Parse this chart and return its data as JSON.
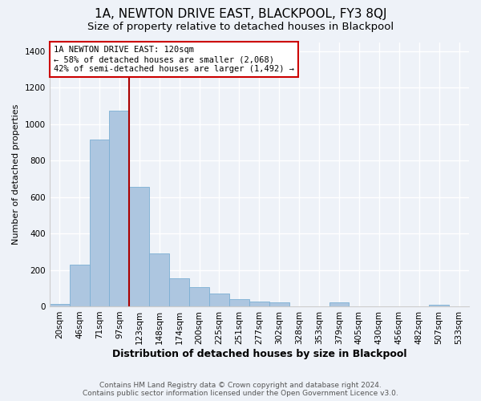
{
  "title": "1A, NEWTON DRIVE EAST, BLACKPOOL, FY3 8QJ",
  "subtitle": "Size of property relative to detached houses in Blackpool",
  "xlabel": "Distribution of detached houses by size in Blackpool",
  "ylabel": "Number of detached properties",
  "bar_labels": [
    "20sqm",
    "46sqm",
    "71sqm",
    "97sqm",
    "123sqm",
    "148sqm",
    "174sqm",
    "200sqm",
    "225sqm",
    "251sqm",
    "277sqm",
    "302sqm",
    "328sqm",
    "353sqm",
    "379sqm",
    "405sqm",
    "430sqm",
    "456sqm",
    "482sqm",
    "507sqm",
    "533sqm"
  ],
  "bar_values": [
    15,
    230,
    915,
    1075,
    655,
    290,
    155,
    105,
    70,
    40,
    25,
    20,
    0,
    0,
    20,
    0,
    0,
    0,
    0,
    10,
    0
  ],
  "bar_color": "#adc6e0",
  "bar_edgecolor": "#7bafd4",
  "vline_color": "#aa0000",
  "vline_x_index": 3.5,
  "annotation_box_text": "1A NEWTON DRIVE EAST: 120sqm\n← 58% of detached houses are smaller (2,068)\n42% of semi-detached houses are larger (1,492) →",
  "annotation_box_edgecolor": "#cc0000",
  "annotation_box_facecolor": "#ffffff",
  "ylim": [
    0,
    1450
  ],
  "yticks": [
    0,
    200,
    400,
    600,
    800,
    1000,
    1200,
    1400
  ],
  "footer_line1": "Contains HM Land Registry data © Crown copyright and database right 2024.",
  "footer_line2": "Contains public sector information licensed under the Open Government Licence v3.0.",
  "title_fontsize": 11,
  "subtitle_fontsize": 9.5,
  "xlabel_fontsize": 9,
  "ylabel_fontsize": 8,
  "tick_fontsize": 7.5,
  "annotation_fontsize": 7.5,
  "footer_fontsize": 6.5,
  "bg_color": "#eef2f8",
  "plot_bg_color": "#eef2f8",
  "grid_color": "#ffffff",
  "grid_linewidth": 1.0
}
